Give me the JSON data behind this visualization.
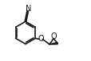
{
  "background_color": "#ffffff",
  "line_color": "#1a1a1a",
  "line_width": 1.2,
  "text_color": "#1a1a1a",
  "font_size": 6.5,
  "fig_width": 1.15,
  "fig_height": 0.77,
  "dpi": 100,
  "xlim": [
    0,
    11
  ],
  "ylim": [
    0,
    8
  ]
}
